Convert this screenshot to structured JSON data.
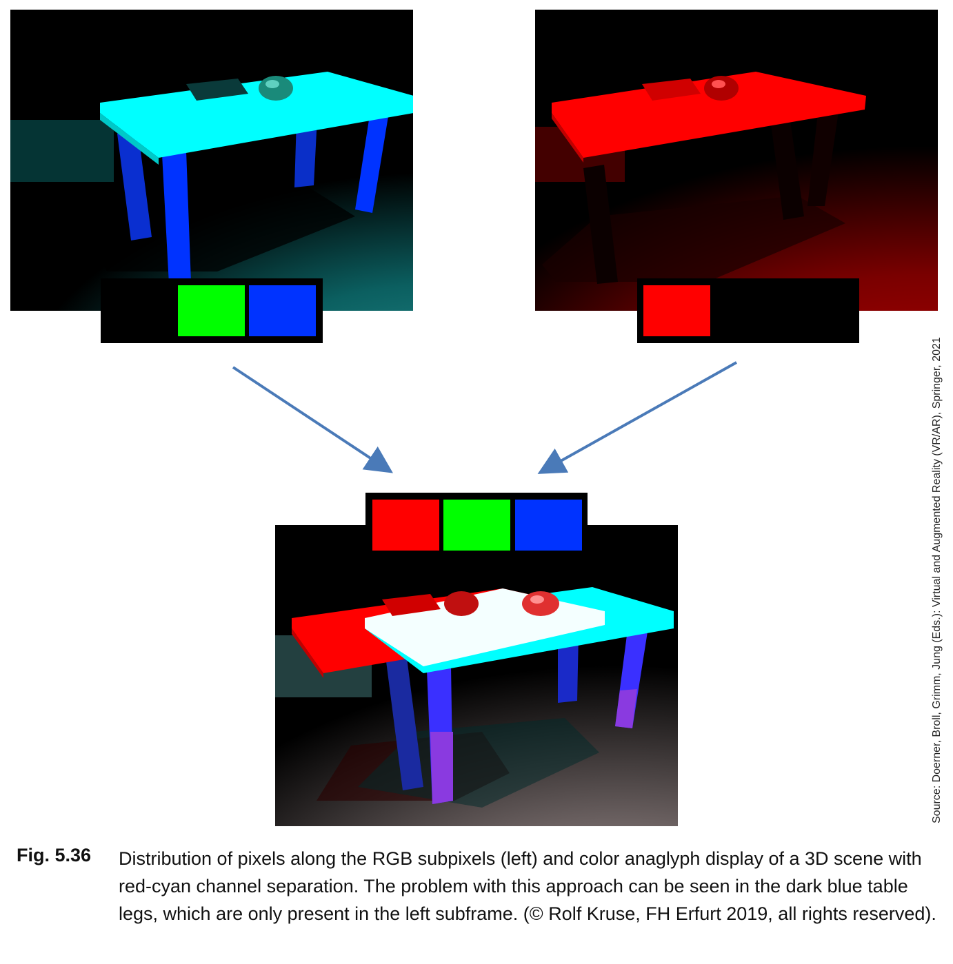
{
  "figure": {
    "label": "Fig. 5.36",
    "caption": "Distribution of pixels along the RGB subpixels (left) and color anaglyph display of a 3D scene with red-cyan channel separation. The problem with this approach can be seen in the dark blue table legs, which are only present in the left subframe. (© Rolf Kruse, FH Erfurt 2019, all rights reserved).",
    "source": "Source: Doerner, Broll, Grimm, Jung (Eds.): Virtual and Augmented Reality (VR/AR), Springer, 2021"
  },
  "colors": {
    "red": "#ff0000",
    "green": "#00ff00",
    "blue": "#0033ff",
    "cyan": "#00ffff",
    "arrow": "#4a7ab8"
  },
  "images": [
    {
      "name": "left-subframe",
      "subpixels": [
        "off",
        "green",
        "blue"
      ]
    },
    {
      "name": "right-subframe",
      "subpixels": [
        "red",
        "off",
        "off"
      ]
    },
    {
      "name": "anaglyph-composite",
      "subpixels": [
        "red",
        "green",
        "blue"
      ]
    }
  ]
}
